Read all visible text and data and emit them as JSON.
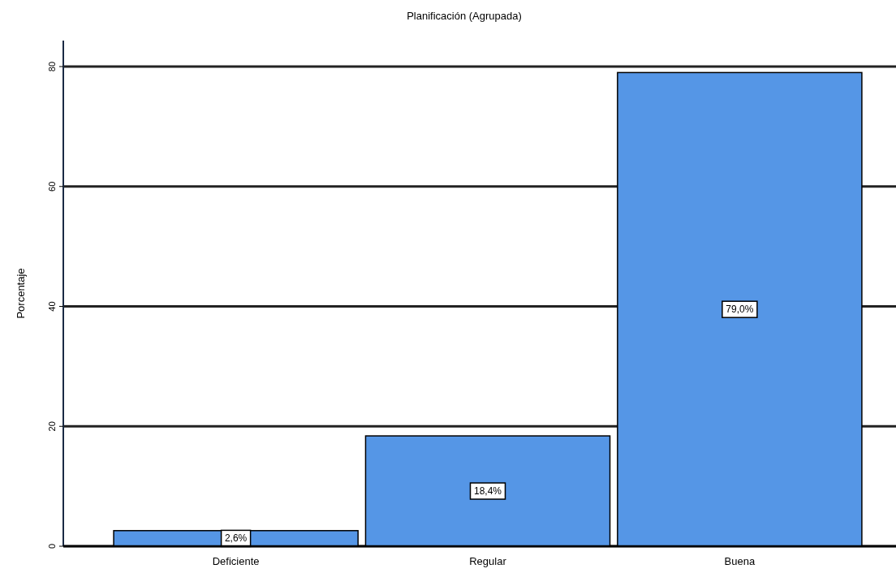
{
  "chart_data": {
    "type": "bar",
    "title": "Planificación (Agrupada)",
    "ylabel": "Porcentaje",
    "categories": [
      "Deficiente",
      "Regular",
      "Buena"
    ],
    "values": [
      2.6,
      18.4,
      79.0
    ],
    "value_labels": [
      "2,6%",
      "18,4%",
      "79,0%"
    ],
    "color": "#5596e6",
    "ylim": [
      0,
      80
    ],
    "yticks": [
      0,
      20,
      40,
      60,
      80
    ],
    "grid": true
  }
}
